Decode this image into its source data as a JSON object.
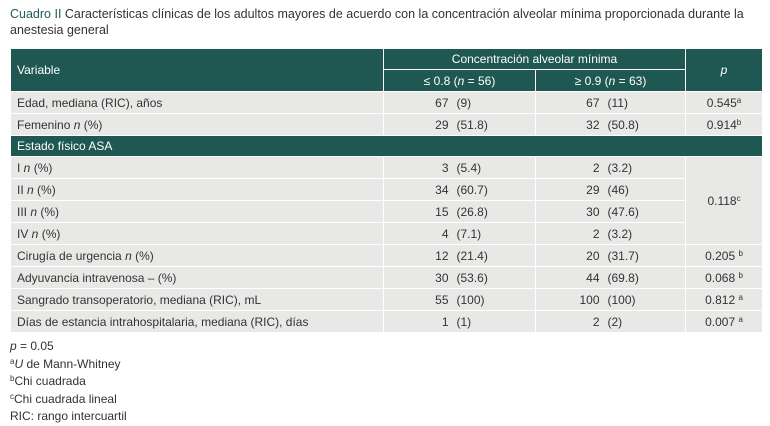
{
  "caption": {
    "label": "Cuadro II",
    "text": " Características clínicas de los adultos mayores de acuerdo con la concentración alveolar mínima proporcionada durante la anestesia general"
  },
  "header": {
    "variable": "Variable",
    "group": "Concentración alveolar mínima",
    "col1": {
      "prefix": "≤ 0.8 (",
      "n": "n",
      "suffix": " = 56)"
    },
    "col2": {
      "prefix": "≥ 0.9 (",
      "n": "n",
      "suffix": " = 63)"
    },
    "p": "p"
  },
  "rows_top": [
    {
      "label": "Edad, mediana (RIC), años",
      "italic": "",
      "label_tail": "",
      "a1": "67",
      "a2": "(9)",
      "b1": "67",
      "b2": "(11)",
      "p": "0.545",
      "sup": "a"
    },
    {
      "label": "Femenino ",
      "italic": "n",
      "label_tail": " (%)",
      "a1": "29",
      "a2": "(51.8)",
      "b1": "32",
      "b2": "(50.8)",
      "p": "0.914",
      "sup": "b"
    }
  ],
  "section": "Estado físico ASA",
  "asa_rows": [
    {
      "label": "I ",
      "italic": "n",
      "label_tail": " (%)",
      "a1": "3",
      "a2": "(5.4)",
      "b1": "2",
      "b2": "(3.2)"
    },
    {
      "label": "II ",
      "italic": "n",
      "label_tail": " (%)",
      "a1": "34",
      "a2": "(60.7)",
      "b1": "29",
      "b2": "(46)"
    },
    {
      "label": "III ",
      "italic": "n",
      "label_tail": " (%)",
      "a1": "15",
      "a2": "(26.8)",
      "b1": "30",
      "b2": "(47.6)"
    },
    {
      "label": "IV ",
      "italic": "n",
      "label_tail": " (%)",
      "a1": "4",
      "a2": "(7.1)",
      "b1": "2",
      "b2": "(3.2)"
    }
  ],
  "asa_p": {
    "value": "0.118",
    "sup": "c"
  },
  "rows_bottom": [
    {
      "label": "Cirugía de urgencia ",
      "italic": "n",
      "label_tail": " (%)",
      "a1": "12",
      "a2": "(21.4)",
      "b1": "20",
      "b2": "(31.7)",
      "p": "0.205 ",
      "sup": "b"
    },
    {
      "label": "Adyuvancia intravenosa – (%)",
      "italic": "",
      "label_tail": "",
      "a1": "30",
      "a2": "(53.6)",
      "b1": "44",
      "b2": "(69.8)",
      "p": "0.068 ",
      "sup": "b"
    },
    {
      "label": "Sangrado transoperatorio, mediana (RIC), mL",
      "italic": "",
      "label_tail": "",
      "a1": "55",
      "a2": "(100)",
      "b1": "100",
      "b2": "(100)",
      "p": "0.812 ",
      "sup": "a"
    },
    {
      "label": "Días de estancia intrahospitalaria, mediana (RIC), días",
      "italic": "",
      "label_tail": "",
      "a1": "1",
      "a2": "(1)",
      "b1": "2",
      "b2": "(2)",
      "p": "0.007 ",
      "sup": "a"
    }
  ],
  "footnotes": {
    "p_italic": "p",
    "p_text": " = 0.05",
    "a_sup": "a",
    "a_italic": "U",
    "a_text": " de Mann-Whitney",
    "b_sup": "b",
    "b_text": "Chi cuadrada",
    "c_sup": "c",
    "c_text": "Chi cuadrada lineal",
    "ric": "RIC: rango intercuartil"
  },
  "colors": {
    "header_bg": "#1f5752",
    "row_bg": "#e8e8e7",
    "caption_label": "#1f5c56"
  }
}
